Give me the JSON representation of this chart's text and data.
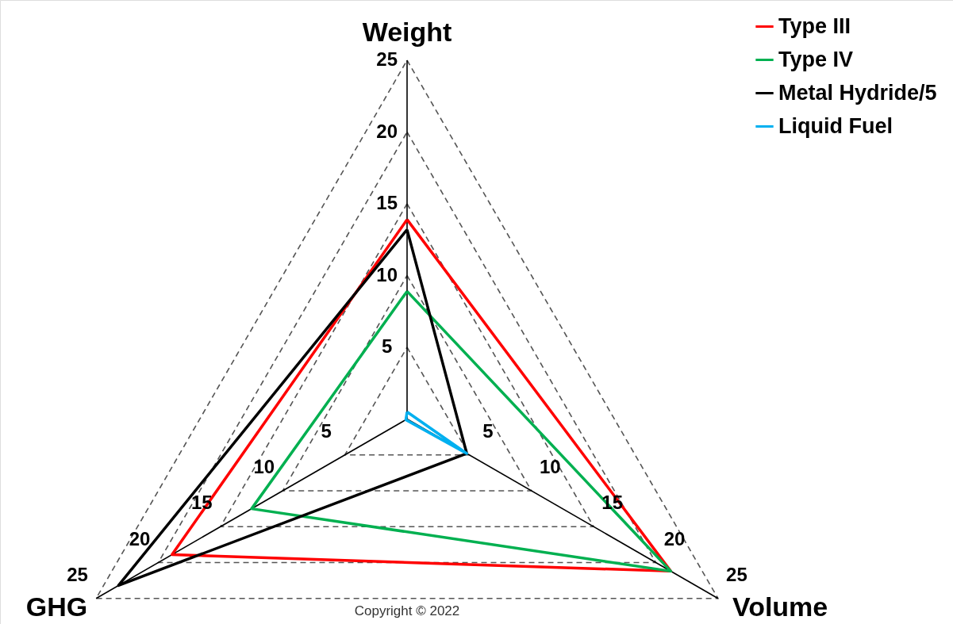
{
  "chart_data": {
    "type": "radar",
    "categories": [
      "Weight",
      "Volume",
      "GHG"
    ],
    "series": [
      {
        "name": "Type III",
        "color": "#ff0000",
        "values": [
          13.9,
          21.2,
          18.9
        ]
      },
      {
        "name": "Type IV",
        "color": "#00b050",
        "values": [
          8.9,
          21.2,
          12.5
        ]
      },
      {
        "name": "Metal Hydride/5",
        "color": "#000000",
        "values": [
          13.2,
          4.8,
          23.2
        ]
      },
      {
        "name": "Liquid Fuel",
        "color": "#00b0f0",
        "values": [
          0.5,
          4.8,
          0.1
        ]
      }
    ],
    "ylim": [
      0,
      25
    ],
    "yticks": [
      5,
      10,
      15,
      20,
      25,
      5,
      10,
      15,
      20,
      25,
      5,
      10,
      15,
      20,
      25
    ],
    "grid": true,
    "legend": "top right",
    "line_style": "solid",
    "marker": "none",
    "annotations": [
      "Copyright © 2022"
    ]
  }
}
